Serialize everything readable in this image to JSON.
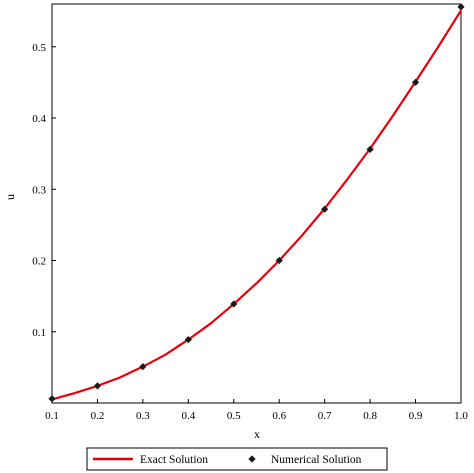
{
  "chart_data": {
    "type": "line",
    "xlabel": "x",
    "ylabel": "u",
    "xlim": [
      0.1,
      1.0
    ],
    "ylim": [
      0.0,
      0.56
    ],
    "x_ticks": [
      "0.1",
      "0.2",
      "0.3",
      "0.4",
      "0.5",
      "0.6",
      "0.7",
      "0.8",
      "0.9",
      "1.0"
    ],
    "y_ticks": [
      "0.1",
      "0.2",
      "0.3",
      "0.4",
      "0.5"
    ],
    "grid": false,
    "legend_position": "bottom",
    "series": [
      {
        "name": "Exact Solution",
        "kind": "line",
        "color": "#e8000b",
        "x": [
          0.1,
          0.15,
          0.2,
          0.25,
          0.3,
          0.35,
          0.4,
          0.45,
          0.5,
          0.55,
          0.6,
          0.65,
          0.7,
          0.75,
          0.8,
          0.85,
          0.9,
          0.95,
          1.0
        ],
        "y": [
          0.005,
          0.014,
          0.024,
          0.036,
          0.051,
          0.068,
          0.089,
          0.112,
          0.139,
          0.168,
          0.2,
          0.235,
          0.273,
          0.314,
          0.357,
          0.403,
          0.451,
          0.5,
          0.551
        ]
      },
      {
        "name": "Numerical Solution",
        "kind": "scatter",
        "marker": "diamond",
        "color": "#1a1a1a",
        "x": [
          0.1,
          0.2,
          0.3,
          0.4,
          0.5,
          0.6,
          0.7,
          0.8,
          0.9,
          1.0
        ],
        "y": [
          0.006,
          0.024,
          0.051,
          0.089,
          0.139,
          0.2,
          0.272,
          0.356,
          0.45,
          0.556
        ]
      }
    ]
  }
}
